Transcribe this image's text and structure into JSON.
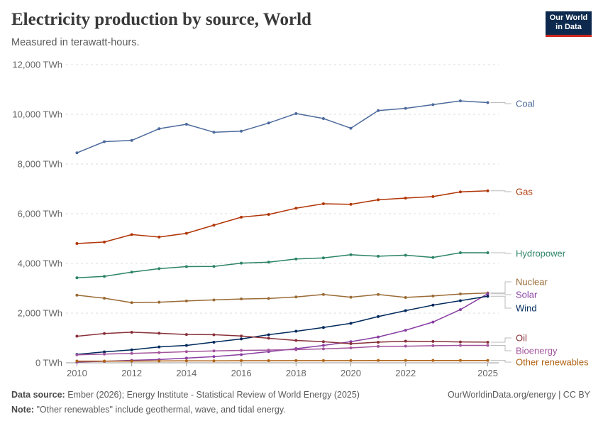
{
  "header": {
    "title": "Electricity production by source, World",
    "subtitle": "Measured in terawatt-hours.",
    "logo_line1": "Our World",
    "logo_line2": "in Data"
  },
  "footer": {
    "source_label": "Data source:",
    "source_text": "Ember (2026); Energy Institute - Statistical Review of World Energy (2025)",
    "credit": "OurWorldinData.org/energy | CC BY",
    "note_label": "Note:",
    "note_text": "\"Other renewables\" include geothermal, wave, and tidal energy."
  },
  "chart_data": {
    "type": "line",
    "title": "Electricity production by source, World",
    "subtitle": "Measured in terawatt-hours.",
    "x": [
      2010,
      2011,
      2012,
      2013,
      2014,
      2015,
      2016,
      2017,
      2018,
      2019,
      2020,
      2021,
      2022,
      2023,
      2024,
      2025
    ],
    "xlim": [
      2009.6,
      2025.4
    ],
    "ylim": [
      0,
      12000
    ],
    "x_ticks": [
      2010,
      2012,
      2014,
      2016,
      2018,
      2020,
      2022,
      2025
    ],
    "x_tick_labels": [
      "2010",
      "2012",
      "2014",
      "2016",
      "2018",
      "2020",
      "2022",
      "2025"
    ],
    "y_ticks": [
      0,
      2000,
      4000,
      6000,
      8000,
      10000,
      12000
    ],
    "y_tick_labels": [
      "0 TWh",
      "2,000 TWh",
      "4,000 TWh",
      "6,000 TWh",
      "8,000 TWh",
      "10,000 TWh",
      "12,000 TWh"
    ],
    "grid": "horizontal dashed",
    "legend": "right, labels at line ends",
    "series": [
      {
        "name": "Coal",
        "color": "#4c6a9c",
        "values": [
          8450,
          8900,
          8950,
          9420,
          9600,
          9280,
          9320,
          9650,
          10030,
          9830,
          9440,
          10150,
          10240,
          10390,
          10540,
          10470
        ]
      },
      {
        "name": "Gas",
        "color": "#b13507",
        "values": [
          4800,
          4860,
          5160,
          5060,
          5210,
          5540,
          5860,
          5970,
          6220,
          6400,
          6380,
          6560,
          6630,
          6690,
          6880,
          6920
        ]
      },
      {
        "name": "Hydropower",
        "color": "#2c8465",
        "values": [
          3420,
          3480,
          3650,
          3790,
          3870,
          3880,
          4010,
          4050,
          4180,
          4220,
          4350,
          4290,
          4330,
          4240,
          4430,
          4430
        ]
      },
      {
        "name": "Nuclear",
        "color": "#9a6b35",
        "values": [
          2720,
          2600,
          2420,
          2440,
          2490,
          2530,
          2570,
          2590,
          2650,
          2750,
          2640,
          2750,
          2630,
          2690,
          2770,
          2810
        ]
      },
      {
        "name": "Solar",
        "color": "#883ea1",
        "values": [
          30,
          60,
          100,
          130,
          190,
          250,
          330,
          450,
          570,
          700,
          850,
          1040,
          1310,
          1640,
          2140,
          2780
        ]
      },
      {
        "name": "Wind",
        "color": "#00295b",
        "values": [
          340,
          440,
          520,
          640,
          700,
          830,
          960,
          1130,
          1270,
          1420,
          1590,
          1860,
          2100,
          2320,
          2500,
          2680
        ]
      },
      {
        "name": "Oil",
        "color": "#883039",
        "values": [
          1070,
          1180,
          1230,
          1190,
          1140,
          1130,
          1080,
          990,
          900,
          850,
          770,
          830,
          870,
          860,
          840,
          830
        ]
      },
      {
        "name": "Bioenergy",
        "color": "#a2559c",
        "values": [
          320,
          350,
          380,
          410,
          450,
          480,
          500,
          510,
          530,
          560,
          600,
          660,
          670,
          690,
          700,
          700
        ]
      },
      {
        "name": "Other renewables",
        "color": "#b16214",
        "values": [
          70,
          70,
          70,
          75,
          80,
          80,
          85,
          85,
          90,
          90,
          90,
          95,
          95,
          95,
          95,
          95
        ]
      }
    ]
  }
}
